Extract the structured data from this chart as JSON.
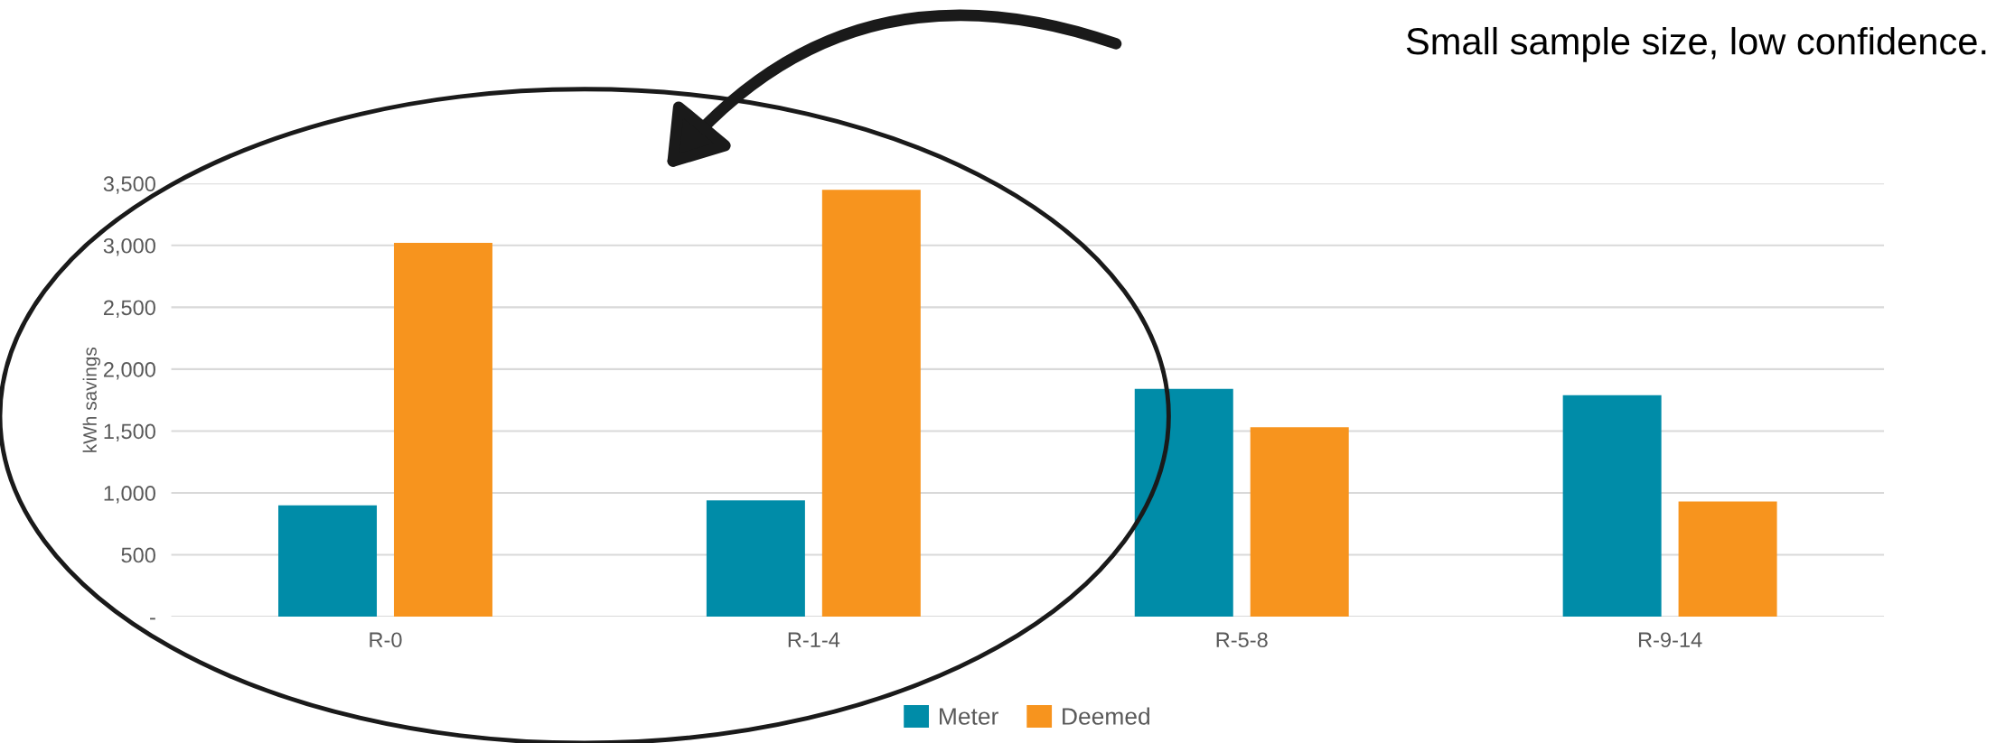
{
  "chart_data": {
    "type": "bar",
    "categories": [
      "R-0",
      "R-1-4",
      "R-5-8",
      "R-9-14"
    ],
    "series": [
      {
        "name": "Meter",
        "color": "#008ca8",
        "values": [
          900,
          940,
          1840,
          1790
        ]
      },
      {
        "name": "Deemed",
        "color": "#f7941e",
        "values": [
          3020,
          3450,
          1530,
          930
        ]
      }
    ],
    "ylabel": "kWh savings",
    "ylim": [
      0,
      3500
    ],
    "yticks": [
      {
        "value": 0,
        "label": "-"
      },
      {
        "value": 500,
        "label": "500"
      },
      {
        "value": 1000,
        "label": "1,000"
      },
      {
        "value": 1500,
        "label": "1,500"
      },
      {
        "value": 2000,
        "label": "2,000"
      },
      {
        "value": 2500,
        "label": "2,500"
      },
      {
        "value": 3000,
        "label": "3,000"
      },
      {
        "value": 3500,
        "label": "3,500"
      }
    ],
    "grid": "y",
    "legend": "bottom",
    "annotations": [
      "Small sample size, low confidence."
    ]
  }
}
